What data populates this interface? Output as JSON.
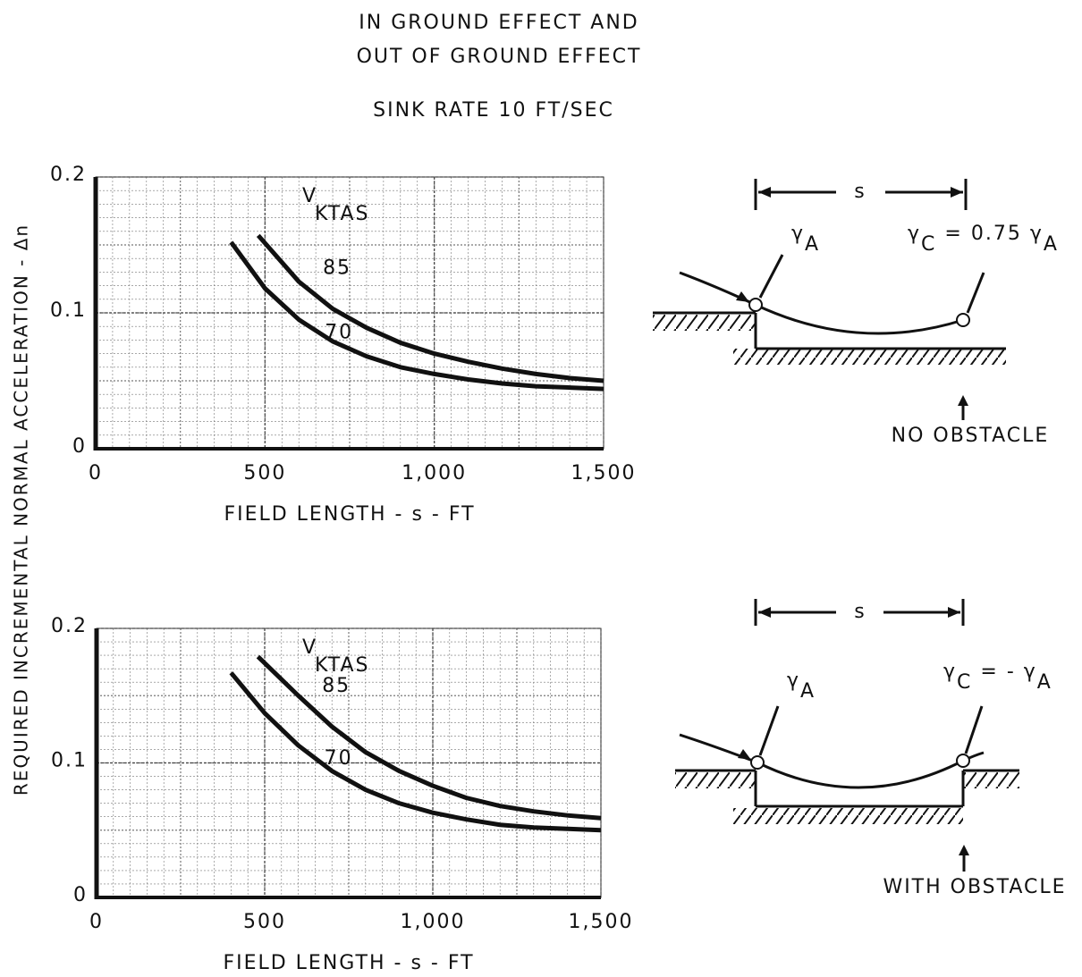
{
  "header": {
    "lines": [
      "IN GROUND EFFECT AND",
      "OUT OF GROUND EFFECT"
    ],
    "sink_rate": "SINK RATE 10 FT/SEC"
  },
  "ylabel": "REQUIRED INCREMENTAL NORMAL ACCELERATION - Δn",
  "chart_data": [
    {
      "type": "line",
      "xlabel": "FIELD LENGTH - s - FT",
      "legend_title": "V",
      "legend_title_sub": "KTAS",
      "xlim": [
        0,
        1500
      ],
      "ylim": [
        0,
        0.2
      ],
      "xticks": [
        0,
        500,
        {
          "value": 1000,
          "label": "1,000"
        },
        {
          "value": 1500,
          "label": "1,500"
        }
      ],
      "yticks": [
        0,
        0.1,
        0.2
      ],
      "grid": true,
      "series": [
        {
          "name": "70",
          "color": "#111111",
          "x": [
            400,
            500,
            600,
            700,
            800,
            900,
            1000,
            1100,
            1200,
            1300,
            1400,
            1500
          ],
          "values": [
            0.152,
            0.118,
            0.095,
            0.079,
            0.068,
            0.06,
            0.055,
            0.051,
            0.048,
            0.046,
            0.045,
            0.044
          ]
        },
        {
          "name": "85",
          "color": "#111111",
          "x": [
            480,
            600,
            700,
            800,
            900,
            1000,
            1100,
            1200,
            1300,
            1400,
            1500
          ],
          "values": [
            0.157,
            0.123,
            0.103,
            0.089,
            0.078,
            0.07,
            0.064,
            0.059,
            0.055,
            0.052,
            0.05
          ]
        }
      ]
    },
    {
      "type": "line",
      "xlabel": "FIELD LENGTH - s - FT",
      "legend_title": "V",
      "legend_title_sub": "KTAS",
      "xlim": [
        0,
        1500
      ],
      "ylim": [
        0,
        0.2
      ],
      "xticks": [
        0,
        500,
        {
          "value": 1000,
          "label": "1,000"
        },
        {
          "value": 1500,
          "label": "1,500"
        }
      ],
      "yticks": [
        0,
        0.1,
        0.2
      ],
      "grid": true,
      "series": [
        {
          "name": "70",
          "color": "#111111",
          "x": [
            400,
            500,
            600,
            700,
            800,
            900,
            1000,
            1100,
            1200,
            1300,
            1400,
            1500
          ],
          "values": [
            0.167,
            0.137,
            0.113,
            0.094,
            0.08,
            0.07,
            0.063,
            0.058,
            0.054,
            0.052,
            0.051,
            0.05
          ]
        },
        {
          "name": "85",
          "color": "#111111",
          "x": [
            480,
            600,
            700,
            800,
            900,
            1000,
            1100,
            1200,
            1300,
            1400,
            1500
          ],
          "values": [
            0.179,
            0.15,
            0.127,
            0.108,
            0.094,
            0.083,
            0.074,
            0.068,
            0.064,
            0.061,
            0.059
          ]
        }
      ]
    }
  ],
  "diagrams": [
    {
      "span_label": "s",
      "angle_a": [
        "γ",
        "A"
      ],
      "angle_c": [
        "γ",
        "C",
        " = 0.75 ",
        "γ",
        "A"
      ],
      "caption": "NO OBSTACLE"
    },
    {
      "span_label": "s",
      "angle_a": [
        "γ",
        "A"
      ],
      "angle_c": [
        "γ",
        "C",
        " = - ",
        "γ",
        "A"
      ],
      "caption": "WITH OBSTACLE"
    }
  ]
}
